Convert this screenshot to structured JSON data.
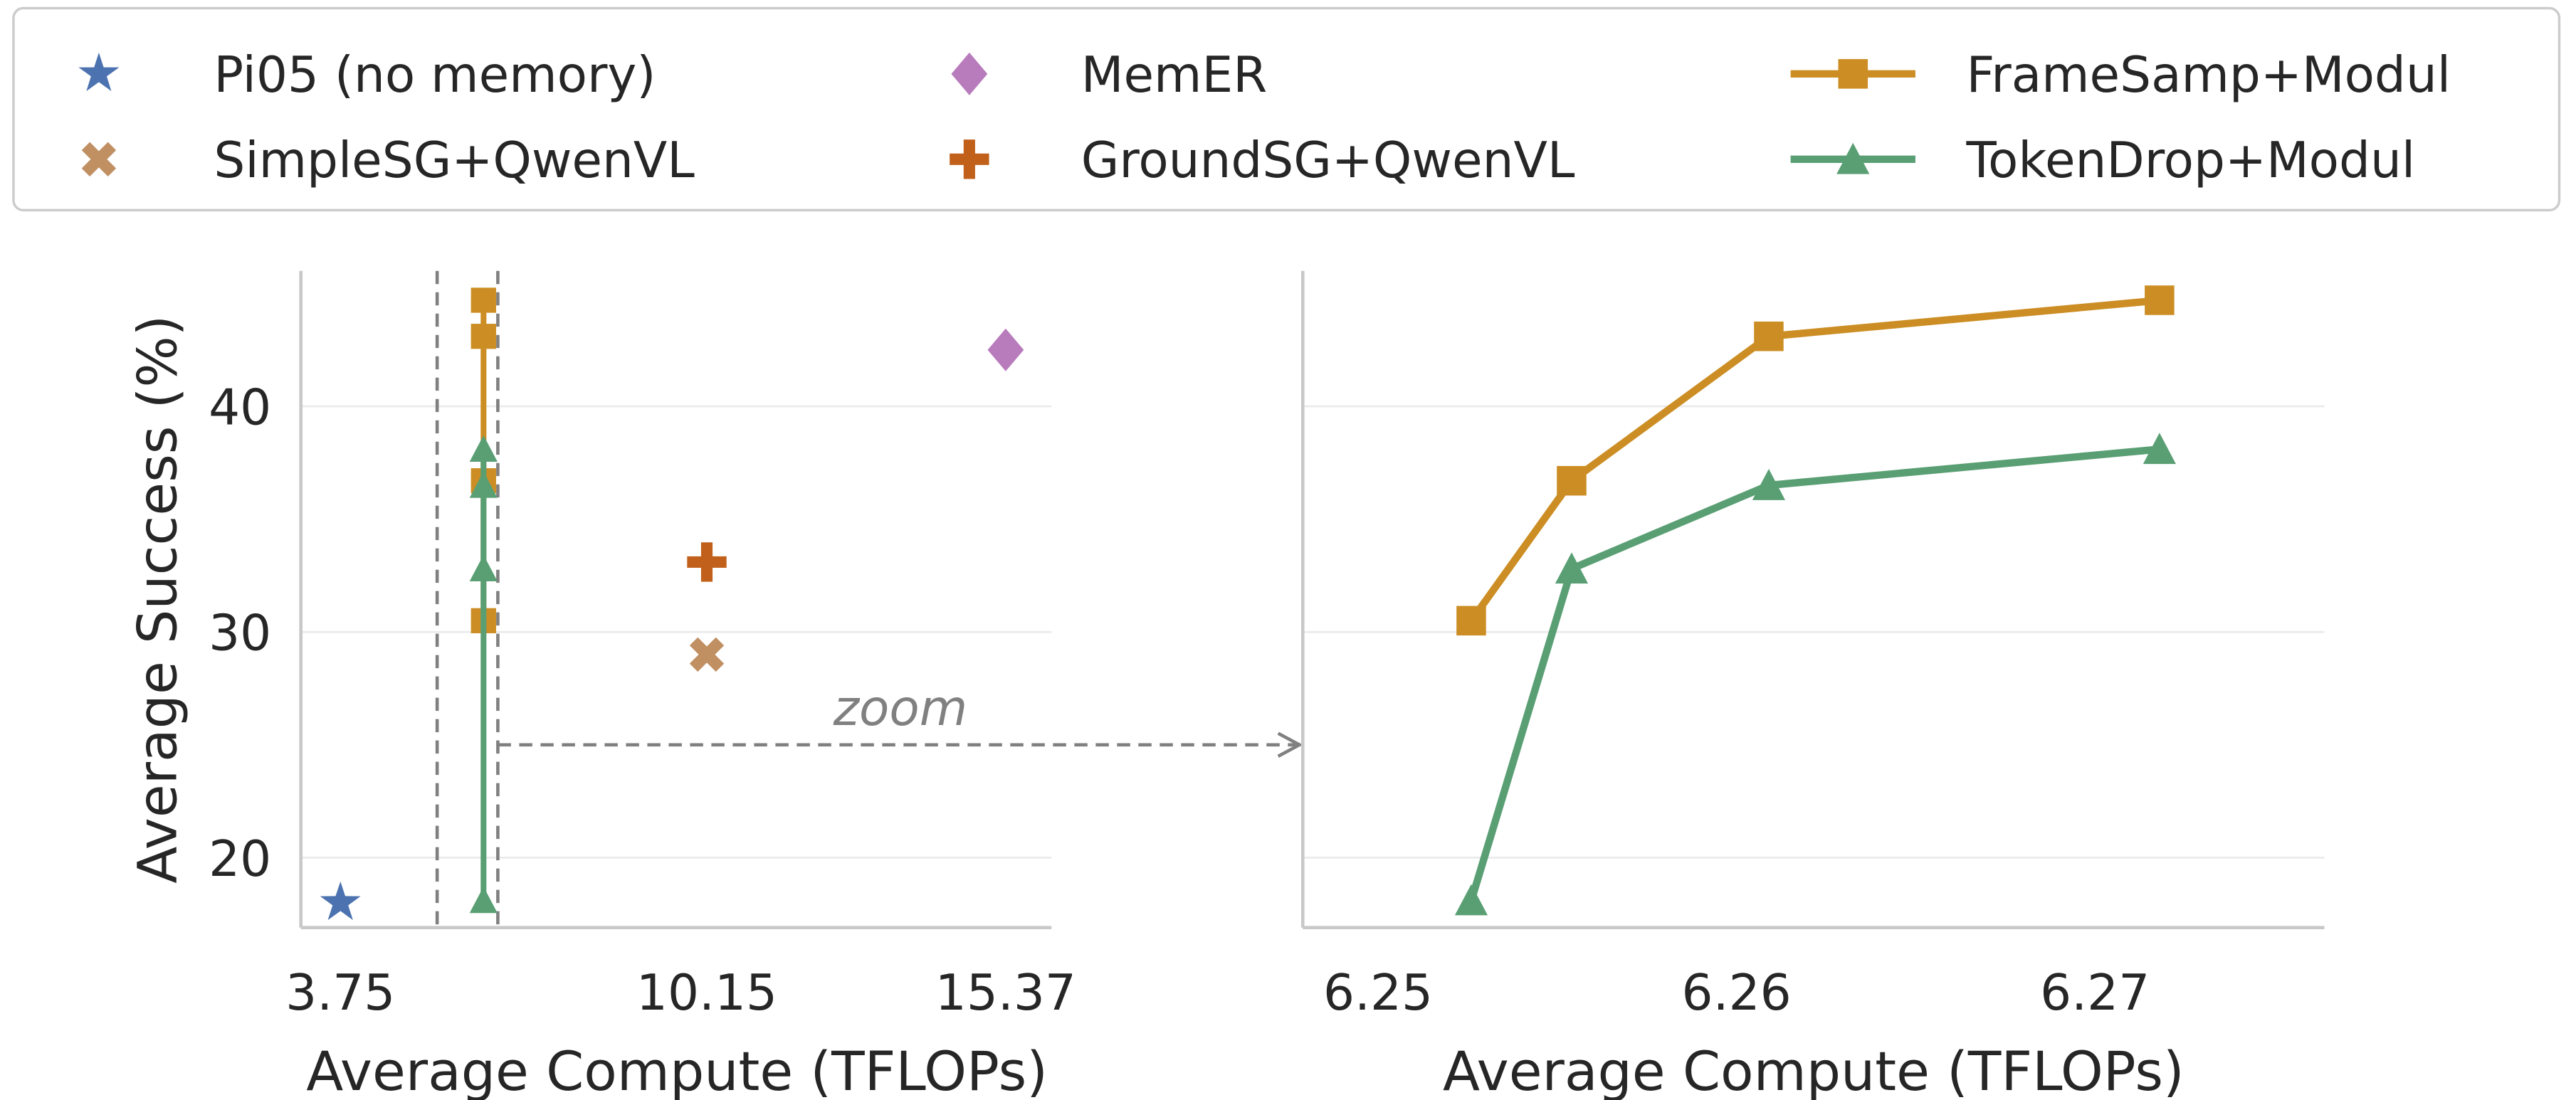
{
  "chart_data": [
    {
      "type": "scatter",
      "xlabel": "Average Compute (TFLOPs)",
      "ylabel": "Average Success (%)",
      "xticks": [
        3.75,
        10.15,
        15.37
      ],
      "xtick_labels": [
        "3.75",
        "10.15",
        "15.37"
      ],
      "yticks": [
        20,
        30,
        40
      ],
      "ytick_labels": [
        "20",
        "30",
        "40"
      ],
      "xlim": [
        3.06,
        16.17
      ],
      "ylim": [
        16.9,
        46.0
      ],
      "grid": "horizontal",
      "points": [
        {
          "name": "Pi05 (no memory)",
          "x": 3.75,
          "y": 18.0,
          "marker": "star",
          "color": "#4c72b0"
        },
        {
          "name": "MemER",
          "x": 15.37,
          "y": 42.5,
          "marker": "diamond",
          "color": "#b87bbc"
        },
        {
          "name": "SimpleSG+QwenVL",
          "x": 10.15,
          "y": 29.0,
          "marker": "x",
          "color": "#c08f62"
        },
        {
          "name": "GroundSG+QwenVL",
          "x": 10.15,
          "y": 33.1,
          "marker": "plus",
          "color": "#c0601a"
        }
      ],
      "series": [
        {
          "name": "FrameSamp+Modul",
          "marker": "square",
          "color": "#cc8e24",
          "x": [
            6.25,
            6.25,
            6.25,
            6.25
          ],
          "y": [
            30.5,
            36.7,
            43.1,
            44.7
          ]
        },
        {
          "name": "TokenDrop+Modul",
          "marker": "triangle",
          "color": "#5a9f74",
          "x": [
            6.25,
            6.25,
            6.25,
            6.25
          ],
          "y": [
            18.1,
            32.8,
            36.5,
            38.1
          ]
        }
      ],
      "zoom_region": {
        "x": [
          5.44,
          6.5
        ],
        "label": "zoom",
        "arrow_y": 25
      }
    },
    {
      "type": "line",
      "xlabel": "Average Compute (TFLOPs)",
      "xticks": [
        6.25,
        6.26,
        6.27
      ],
      "xtick_labels": [
        "6.25",
        "6.26",
        "6.27"
      ],
      "yticks": [
        20,
        30,
        40
      ],
      "xlim": [
        6.2479,
        6.2764
      ],
      "ylim": [
        16.9,
        46.0
      ],
      "grid": "horizontal",
      "series": [
        {
          "name": "FrameSamp+Modul",
          "marker": "square",
          "color": "#cc8e24",
          "x": [
            6.2526,
            6.2554,
            6.2609,
            6.2718
          ],
          "y": [
            30.5,
            36.7,
            43.1,
            44.7
          ]
        },
        {
          "name": "TokenDrop+Modul",
          "marker": "triangle",
          "color": "#5a9f74",
          "x": [
            6.2526,
            6.2554,
            6.2609,
            6.2718
          ],
          "y": [
            18.1,
            32.8,
            36.5,
            38.1
          ]
        }
      ]
    }
  ],
  "legend": {
    "placement": "top",
    "entries": [
      {
        "label": "Pi05 (no memory)",
        "marker": "star",
        "color": "#4c72b0"
      },
      {
        "label": "SimpleSG+QwenVL",
        "marker": "x",
        "color": "#c08f62"
      },
      {
        "label": "MemER",
        "marker": "diamond",
        "color": "#b87bbc"
      },
      {
        "label": "GroundSG+QwenVL",
        "marker": "plus",
        "color": "#c0601a"
      },
      {
        "label": "FrameSamp+Modul",
        "marker": "square-line",
        "color": "#cc8e24"
      },
      {
        "label": "TokenDrop+Modul",
        "marker": "triangle-line",
        "color": "#5a9f74"
      }
    ]
  }
}
